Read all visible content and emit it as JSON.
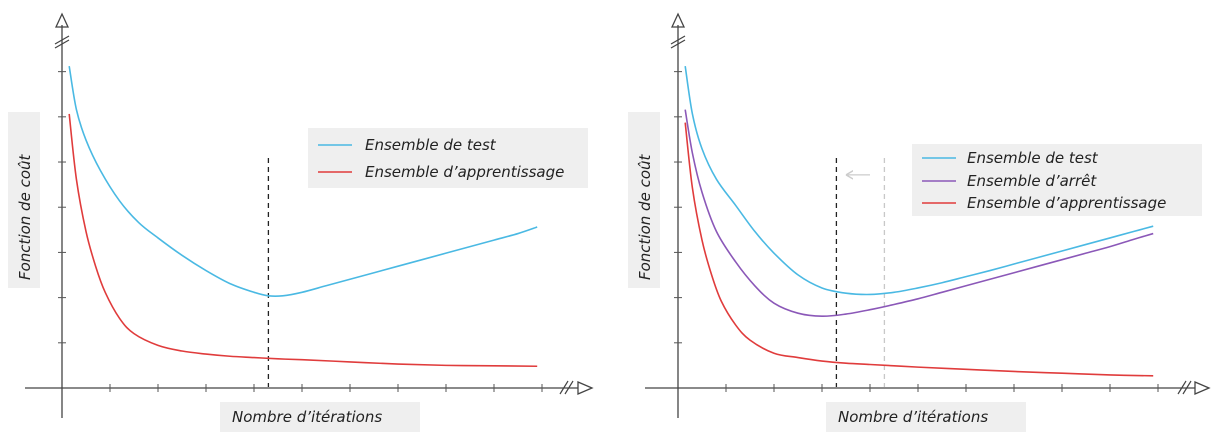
{
  "chart_data": [
    {
      "type": "line",
      "xlabel": "Nombre d’itérations",
      "ylabel": "Fonction de coût",
      "xlim": [
        0,
        10
      ],
      "ylim": [
        0,
        8
      ],
      "grid": false,
      "legend_position": "top-right",
      "series": [
        {
          "name": "Ensemble de test",
          "color": "#4ab9e3",
          "x": [
            0.15,
            0.3,
            0.5,
            0.8,
            1.2,
            1.6,
            2.0,
            2.5,
            3.0,
            3.5,
            4.0,
            4.3,
            4.6,
            5.0,
            5.5,
            6.0,
            6.5,
            7.0,
            7.5,
            8.0,
            8.5,
            9.0,
            9.5,
            9.9
          ],
          "y": [
            7.4,
            6.4,
            5.7,
            5.0,
            4.3,
            3.8,
            3.45,
            3.05,
            2.7,
            2.4,
            2.2,
            2.12,
            2.12,
            2.2,
            2.35,
            2.5,
            2.65,
            2.8,
            2.95,
            3.1,
            3.25,
            3.4,
            3.55,
            3.7
          ]
        },
        {
          "name": "Ensemble d’apprentissage",
          "color": "#e03c3c",
          "x": [
            0.15,
            0.3,
            0.5,
            0.7,
            0.9,
            1.2,
            1.5,
            2.0,
            2.5,
            3.0,
            3.5,
            4.0,
            4.5,
            5.0,
            6.0,
            7.0,
            8.0,
            9.0,
            9.9
          ],
          "y": [
            6.3,
            4.8,
            3.6,
            2.8,
            2.2,
            1.6,
            1.25,
            0.98,
            0.85,
            0.78,
            0.73,
            0.7,
            0.67,
            0.65,
            0.6,
            0.55,
            0.52,
            0.51,
            0.5
          ]
        }
      ],
      "markers": [
        {
          "x": 4.3,
          "style": "dashed",
          "color": "#222222"
        }
      ]
    },
    {
      "type": "line",
      "xlabel": "Nombre d’itérations",
      "ylabel": "Fonction de coût",
      "xlim": [
        0,
        10
      ],
      "ylim": [
        0,
        8
      ],
      "grid": false,
      "legend_position": "top-right",
      "series": [
        {
          "name": "Ensemble de test",
          "color": "#4ab9e3",
          "x": [
            0.15,
            0.3,
            0.5,
            0.8,
            1.2,
            1.6,
            2.0,
            2.5,
            3.0,
            3.5,
            4.0,
            4.5,
            5.0,
            5.5,
            6.0,
            6.5,
            7.0,
            7.5,
            8.0,
            8.5,
            9.0,
            9.5,
            9.9
          ],
          "y": [
            7.4,
            6.3,
            5.5,
            4.8,
            4.2,
            3.6,
            3.1,
            2.6,
            2.3,
            2.18,
            2.15,
            2.2,
            2.3,
            2.42,
            2.56,
            2.7,
            2.85,
            3.0,
            3.15,
            3.3,
            3.45,
            3.6,
            3.72
          ]
        },
        {
          "name": "Ensemble d’arrêt",
          "color": "#8b58b8",
          "x": [
            0.15,
            0.3,
            0.5,
            0.8,
            1.2,
            1.6,
            2.0,
            2.5,
            3.0,
            3.5,
            4.0,
            4.5,
            5.0,
            5.5,
            6.0,
            6.5,
            7.0,
            7.5,
            8.0,
            8.5,
            9.0,
            9.5,
            9.9
          ],
          "y": [
            6.4,
            5.4,
            4.5,
            3.6,
            2.9,
            2.35,
            1.95,
            1.72,
            1.65,
            1.7,
            1.8,
            1.92,
            2.05,
            2.2,
            2.35,
            2.5,
            2.65,
            2.8,
            2.95,
            3.1,
            3.25,
            3.42,
            3.55
          ]
        },
        {
          "name": "Ensemble d’apprentissage",
          "color": "#e03c3c",
          "x": [
            0.15,
            0.3,
            0.5,
            0.7,
            0.9,
            1.2,
            1.5,
            2.0,
            2.5,
            3.0,
            3.5,
            4.0,
            4.5,
            5.0,
            6.0,
            7.0,
            8.0,
            9.0,
            9.9
          ],
          "y": [
            6.1,
            4.6,
            3.4,
            2.6,
            2.0,
            1.45,
            1.1,
            0.8,
            0.7,
            0.62,
            0.57,
            0.54,
            0.51,
            0.48,
            0.43,
            0.38,
            0.34,
            0.3,
            0.28
          ]
        }
      ],
      "markers": [
        {
          "x": 3.3,
          "style": "dashed",
          "color": "#222222"
        },
        {
          "x": 4.3,
          "style": "dashed",
          "color": "#c8c8c8"
        }
      ],
      "arrow": {
        "from_x": 4.0,
        "to_x": 3.5,
        "y": 4.9,
        "color": "#cccccc"
      }
    }
  ]
}
